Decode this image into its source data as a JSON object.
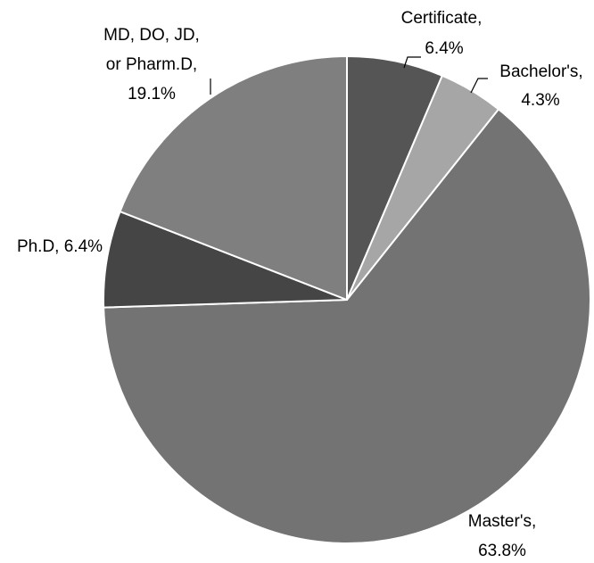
{
  "chart_data": {
    "type": "pie",
    "title": "",
    "start_angle_deg": 0,
    "direction": "clockwise",
    "legend": "none",
    "slices": [
      {
        "name": "Certificate",
        "value": 6.4,
        "label_name": "Certificate,",
        "label_value": "6.4%",
        "color": "#555555"
      },
      {
        "name": "Bachelor's",
        "value": 4.3,
        "label_name": "Bachelor's,",
        "label_value": "4.3%",
        "color": "#a6a6a6"
      },
      {
        "name": "Master's",
        "value": 63.8,
        "label_name": "Master's,",
        "label_value": "63.8%",
        "color": "#737373"
      },
      {
        "name": "Ph.D",
        "value": 6.4,
        "label_name": "Ph.D, 6.4%",
        "label_value": "",
        "color": "#454545"
      },
      {
        "name": "MD, DO, JD, or Pharm.D",
        "value": 19.1,
        "label_name": "MD, DO, JD,",
        "label_name_2": "or Pharm.D,",
        "label_value": "19.1%",
        "color": "#7f7f7f"
      }
    ]
  }
}
